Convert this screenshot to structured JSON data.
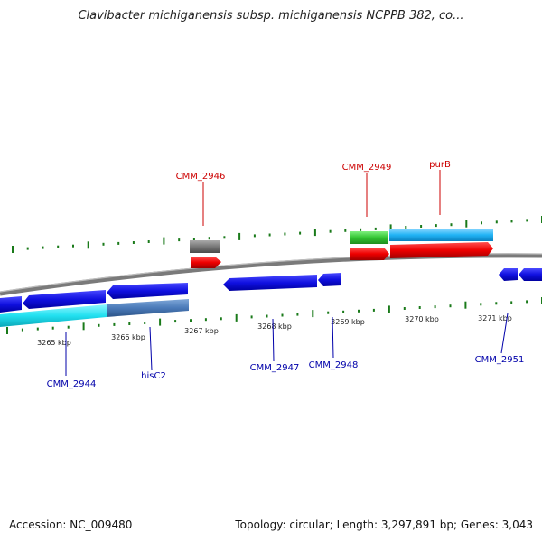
{
  "title": "Clavibacter michiganensis subsp. michiganensis NCPPB 382, co...",
  "footer": {
    "accession": "Accession: NC_009480",
    "topology": "Topology: circular; Length: 3,297,891 bp; Genes: 3,043"
  },
  "colors": {
    "red_label": "#cc0000",
    "blue_label": "#0000aa",
    "tick": "#1a7a1a",
    "backbone": "#7a7a7a"
  },
  "kbp_labels": [
    "3265 kbp",
    "3266 kbp",
    "3267 kbp",
    "3268 kbp",
    "3269 kbp",
    "3270 kbp",
    "3271 kbp"
  ],
  "gene_labels_top": [
    {
      "name": "CMM_2946"
    },
    {
      "name": "CMM_2949"
    },
    {
      "name": "purB"
    }
  ],
  "gene_labels_bottom": [
    {
      "name": "CMM_2944"
    },
    {
      "name": "hisC2"
    },
    {
      "name": "CMM_2947"
    },
    {
      "name": "CMM_2948"
    },
    {
      "name": "CMM_2951"
    }
  ]
}
